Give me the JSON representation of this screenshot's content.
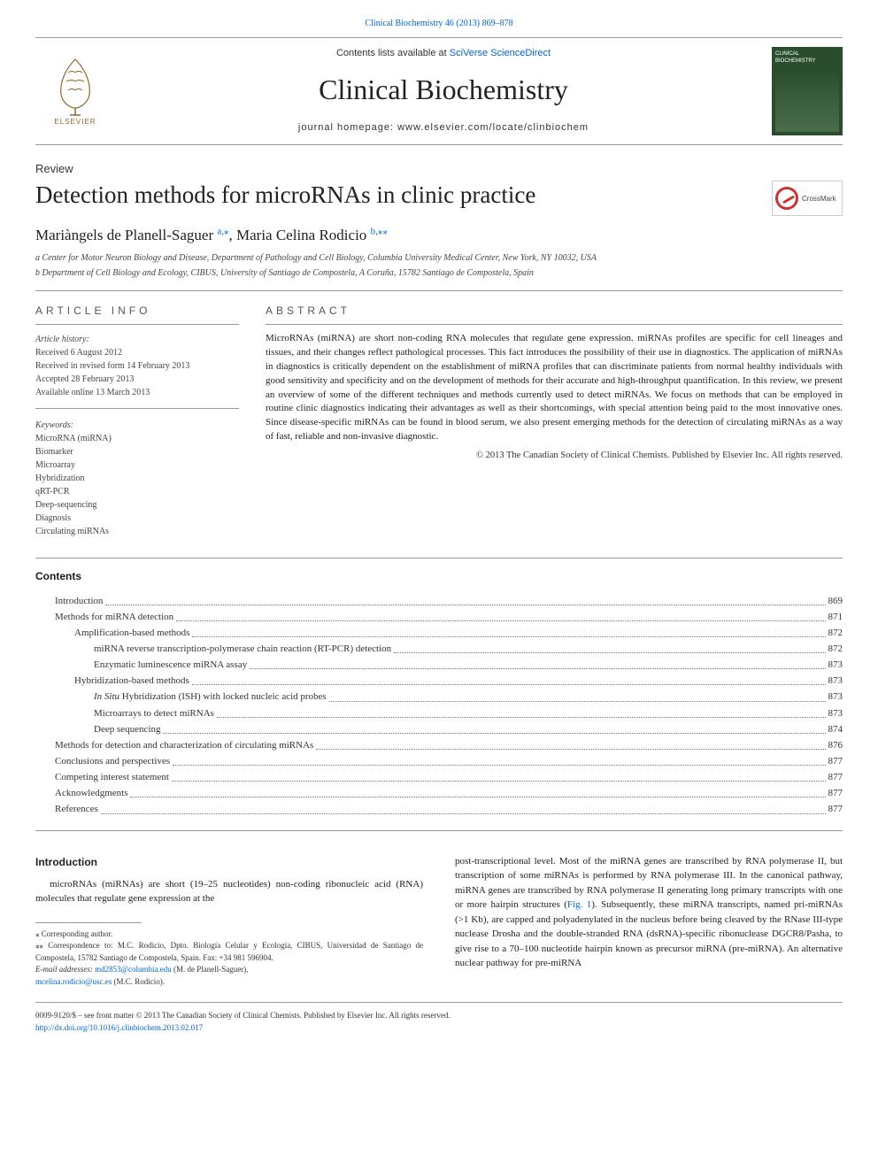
{
  "colors": {
    "link": "#0066cc",
    "text": "#1a1a1a",
    "rule": "#999999",
    "cover_bg": "#2a4d2d"
  },
  "top": {
    "citation": "Clinical Biochemistry 46 (2013) 869–878"
  },
  "header": {
    "contents_prefix": "Contents lists available at ",
    "contents_link": "SciVerse ScienceDirect",
    "journal": "Clinical Biochemistry",
    "homepage_label": "journal homepage: ",
    "homepage_url": "www.elsevier.com/locate/clinbiochem",
    "elsevier_word": "ELSEVIER",
    "cover_badge": "CLINICAL BIOCHEMISTRY"
  },
  "article": {
    "type": "Review",
    "title": "Detection methods for microRNAs in clinic practice",
    "crossmark": "CrossMark"
  },
  "authors": {
    "line_a": "Mariàngels de Planell-Saguer ",
    "sup_a1": "a,",
    "sup_a2": "⁎",
    "join": ", ",
    "line_b": "Maria Celina Rodicio ",
    "sup_b1": "b,",
    "sup_b2": "⁎⁎"
  },
  "affiliations": [
    "a Center for Motor Neuron Biology and Disease, Department of Pathology and Cell Biology, Columbia University Medical Center, New York, NY 10032, USA",
    "b Department of Cell Biology and Ecology, CIBUS, University of Santiago de Compostela, A Coruña, 15782 Santiago de Compostela, Spain"
  ],
  "article_info": {
    "label": "article info",
    "history_head": "Article history:",
    "history": [
      "Received 6 August 2012",
      "Received in revised form 14 February 2013",
      "Accepted 28 February 2013",
      "Available online 13 March 2013"
    ],
    "keywords_head": "Keywords:",
    "keywords": [
      "MicroRNA (miRNA)",
      "Biomarker",
      "Microarray",
      "Hybridization",
      "qRT-PCR",
      "Deep-sequencing",
      "Diagnosis",
      "Circulating miRNAs"
    ]
  },
  "abstract": {
    "label": "abstract",
    "text": "MicroRNAs (miRNA) are short non-coding RNA molecules that regulate gene expression. miRNAs profiles are specific for cell lineages and tissues, and their changes reflect pathological processes. This fact introduces the possibility of their use in diagnostics. The application of miRNAs in diagnostics is critically dependent on the establishment of miRNA profiles that can discriminate patients from normal healthy individuals with good sensitivity and specificity and on the development of methods for their accurate and high-throughput quantification. In this review, we present an overview of some of the different techniques and methods currently used to detect miRNAs. We focus on methods that can be employed in routine clinic diagnostics indicating their advantages as well as their shortcomings, with special attention being paid to the most innovative ones. Since disease-specific miRNAs can be found in blood serum, we also present emerging methods for the detection of circulating miRNAs as a way of fast, reliable and non-invasive diagnostic.",
    "copyright": "© 2013 The Canadian Society of Clinical Chemists. Published by Elsevier Inc. All rights reserved."
  },
  "contents": {
    "heading": "Contents",
    "items": [
      {
        "title": "Introduction",
        "page": "869",
        "indent": 1
      },
      {
        "title": "Methods for miRNA detection",
        "page": "871",
        "indent": 1
      },
      {
        "title": "Amplification-based methods",
        "page": "872",
        "indent": 2
      },
      {
        "title": "miRNA reverse transcription-polymerase chain reaction (RT-PCR) detection",
        "page": "872",
        "indent": 3
      },
      {
        "title": "Enzymatic luminescence miRNA assay",
        "page": "873",
        "indent": 3
      },
      {
        "title": "Hybridization-based methods",
        "page": "873",
        "indent": 2
      },
      {
        "title": "In Situ Hybridization (ISH) with locked nucleic acid probes",
        "page": "873",
        "indent": 3,
        "italic_prefix": "In Situ"
      },
      {
        "title": "Microarrays to detect miRNAs",
        "page": "873",
        "indent": 3
      },
      {
        "title": "Deep sequencing",
        "page": "874",
        "indent": 3
      },
      {
        "title": "Methods for detection and characterization of circulating miRNAs",
        "page": "876",
        "indent": 1
      },
      {
        "title": "Conclusions and perspectives",
        "page": "877",
        "indent": 1
      },
      {
        "title": "Competing interest statement",
        "page": "877",
        "indent": 1
      },
      {
        "title": "Acknowledgments",
        "page": "877",
        "indent": 1
      },
      {
        "title": "References",
        "page": "877",
        "indent": 1
      }
    ]
  },
  "body": {
    "intro_heading": "Introduction",
    "col1_p1_a": "microRNAs (miRNAs) are short (19–25 nucleotides) non-coding ribonucleic acid (RNA) molecules that regulate gene expression at the",
    "col2_p1_a": "post-transcriptional level. Most of the miRNA genes are transcribed by RNA polymerase II, but transcription of some miRNAs is performed by RNA polymerase III. In the canonical pathway, miRNA genes are transcribed by RNA polymerase II generating long primary transcripts with one or more hairpin structures (",
    "col2_fig": "Fig. 1",
    "col2_p1_b": "). Subsequently, these miRNA transcripts, named pri-miRNAs (>1 Kb), are capped and polyadenylated in the nucleus before being cleaved by the RNase III-type nuclease Drosha and the double-stranded RNA (dsRNA)-specific ribonuclease DGCR8/Pasha, to give rise to a 70–100 nucleotide hairpin known as precursor miRNA (pre-miRNA). An alternative nuclear pathway for pre-miRNA"
  },
  "footnotes": {
    "corr1": "⁎  Corresponding author.",
    "corr2": "⁎⁎ Correspondence to: M.C. Rodicio, Dpto. Biología Celular y Ecología, CIBUS, Universidad de Santiago de Compostela, 15782 Santiago de Compostela, Spain. Fax: +34 981 596904.",
    "emails_label": "E-mail addresses: ",
    "email1": "md2853@columbia.edu",
    "email1_name": " (M. de Planell-Saguer),",
    "email2": "mcelina.rodicio@usc.es",
    "email2_name": " (M.C. Rodicio)."
  },
  "footer": {
    "line1": "0009-9120/$ – see front matter © 2013 The Canadian Society of Clinical Chemists. Published by Elsevier Inc. All rights reserved.",
    "doi": "http://dx.doi.org/10.1016/j.clinbiochem.2013.02.017"
  }
}
